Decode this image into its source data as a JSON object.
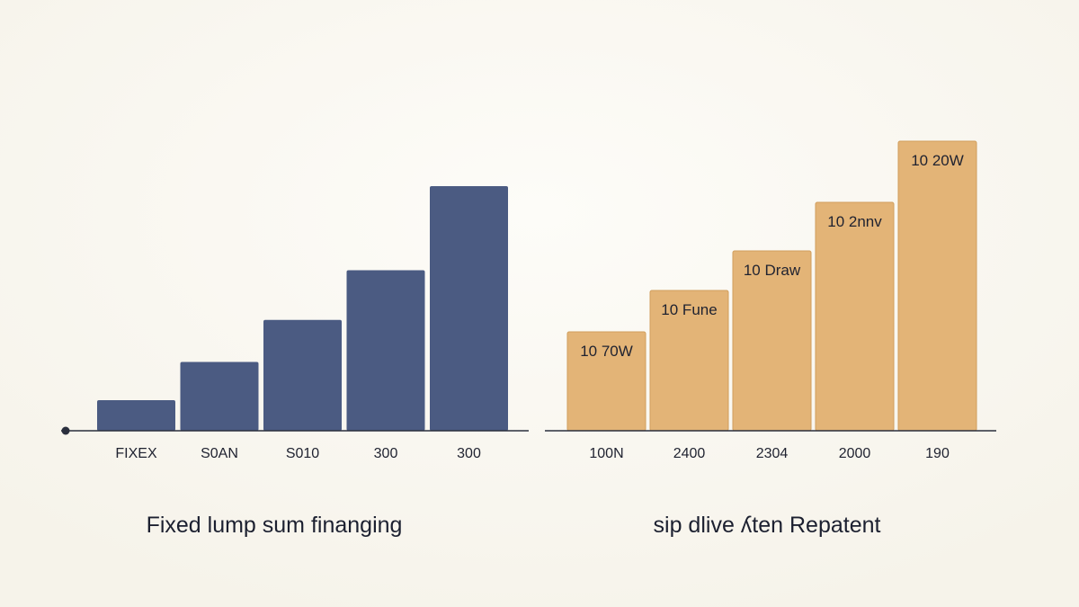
{
  "chart_data": [
    {
      "type": "bar",
      "title": "Fixed lump sum finanging",
      "categories": [
        "FIXEX",
        "S0AN",
        "S010",
        "300",
        "300"
      ],
      "values": [
        16,
        36,
        58,
        84,
        128
      ],
      "ylim": [
        0,
        160
      ],
      "grid": false,
      "colors": {
        "bar": "#4b5b82",
        "axis": "#2a2f3d"
      }
    },
    {
      "type": "bar",
      "title": "sip dlive ʎten Repatent",
      "categories": [
        "100N",
        "2400",
        "2304",
        "2000",
        "190"
      ],
      "values": [
        110,
        156,
        200,
        254,
        322
      ],
      "data_labels": [
        "10 70W",
        "10 Fune",
        "10 Draw",
        "10 2nnv",
        "10 20W"
      ],
      "ylim": [
        0,
        340
      ],
      "grid": false,
      "colors": {
        "bar": "#e3b477",
        "bar_border": "#d09e5c",
        "axis": "#2a2f3d"
      }
    }
  ]
}
